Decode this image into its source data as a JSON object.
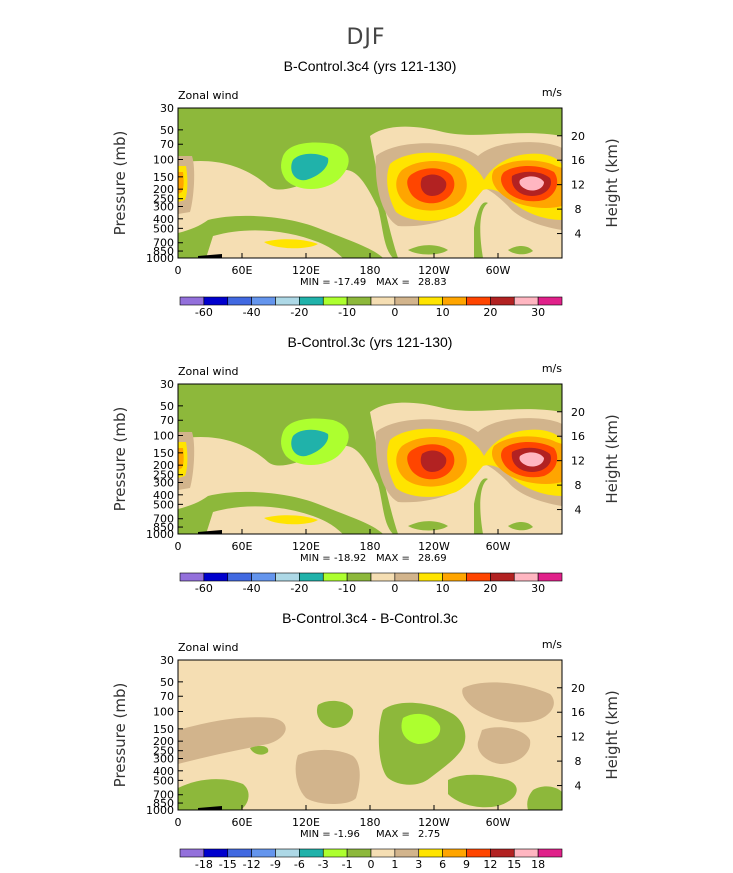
{
  "figure": {
    "title": "DJF"
  },
  "colors": {
    "fill_10": [
      "#9370DB",
      "#0000CD",
      "#4169E1",
      "#6495ED",
      "#ADD8E6",
      "#20B2AA",
      "#ADFF2F",
      "#8DB83B",
      "#F5DEB3",
      "#D2B48C",
      "#FFE400",
      "#FFA500",
      "#FF4500",
      "#B22222",
      "#FFB6C1",
      "#E0218A"
    ]
  },
  "chart_data": [
    {
      "type": "contour",
      "id": "p1",
      "title": "B-Control.3c4 (yrs 121-130)",
      "left_label": "Zonal wind",
      "right_label": "m/s",
      "xlabel": "",
      "ylabel": "Pressure (mb)",
      "ylabel_right": "Height (km)",
      "x_ticks": [
        "0",
        "60E",
        "120E",
        "180",
        "120W",
        "60W"
      ],
      "y_ticks": [
        "30",
        "50",
        "70",
        "100",
        "150",
        "200",
        "250",
        "300",
        "400",
        "500",
        "700",
        "850",
        "1000"
      ],
      "height_ticks": [
        "20",
        "16",
        "12",
        "8",
        "4"
      ],
      "stats": {
        "min_label": "MIN =",
        "min": "-17.49",
        "max_label": "MAX =",
        "max": "28.83"
      },
      "colorbar_labels": [
        "-60",
        "-40",
        "-20",
        "-10",
        "0",
        "10",
        "20",
        "30"
      ],
      "levels": [
        -70,
        -60,
        -50,
        -40,
        -30,
        -20,
        -15,
        -10,
        -5,
        0,
        5,
        10,
        15,
        20,
        25,
        30,
        35
      ]
    },
    {
      "type": "contour",
      "id": "p2",
      "title": "B-Control.3c (yrs 121-130)",
      "left_label": "Zonal wind",
      "right_label": "m/s",
      "xlabel": "",
      "ylabel": "Pressure (mb)",
      "ylabel_right": "Height (km)",
      "x_ticks": [
        "0",
        "60E",
        "120E",
        "180",
        "120W",
        "60W"
      ],
      "y_ticks": [
        "30",
        "50",
        "70",
        "100",
        "150",
        "200",
        "250",
        "300",
        "400",
        "500",
        "700",
        "850",
        "1000"
      ],
      "height_ticks": [
        "20",
        "16",
        "12",
        "8",
        "4"
      ],
      "stats": {
        "min_label": "MIN =",
        "min": "-18.92",
        "max_label": "MAX =",
        "max": "28.69"
      },
      "colorbar_labels": [
        "-60",
        "-40",
        "-20",
        "-10",
        "0",
        "10",
        "20",
        "30"
      ],
      "levels": [
        -70,
        -60,
        -50,
        -40,
        -30,
        -20,
        -15,
        -10,
        -5,
        0,
        5,
        10,
        15,
        20,
        25,
        30,
        35
      ]
    },
    {
      "type": "contour",
      "id": "p3",
      "title": "B-Control.3c4 - B-Control.3c",
      "left_label": "Zonal wind",
      "right_label": "m/s",
      "xlabel": "",
      "ylabel": "Pressure (mb)",
      "ylabel_right": "Height (km)",
      "x_ticks": [
        "0",
        "60E",
        "120E",
        "180",
        "120W",
        "60W"
      ],
      "y_ticks": [
        "30",
        "50",
        "70",
        "100",
        "150",
        "200",
        "250",
        "300",
        "400",
        "500",
        "700",
        "850",
        "1000"
      ],
      "height_ticks": [
        "20",
        "16",
        "12",
        "8",
        "4"
      ],
      "stats": {
        "min_label": "MIN =",
        "min": "-1.96",
        "max_label": "MAX =",
        "max": "2.75"
      },
      "colorbar_labels": [
        "-18",
        "-15",
        "-12",
        "-9",
        "-6",
        "-3",
        "-1",
        "0",
        "1",
        "3",
        "6",
        "9",
        "12",
        "15",
        "18"
      ],
      "levels": [
        -21,
        -18,
        -15,
        -12,
        -9,
        -6,
        -3,
        -1,
        0,
        1,
        3,
        6,
        9,
        12,
        15,
        18,
        21
      ]
    }
  ]
}
